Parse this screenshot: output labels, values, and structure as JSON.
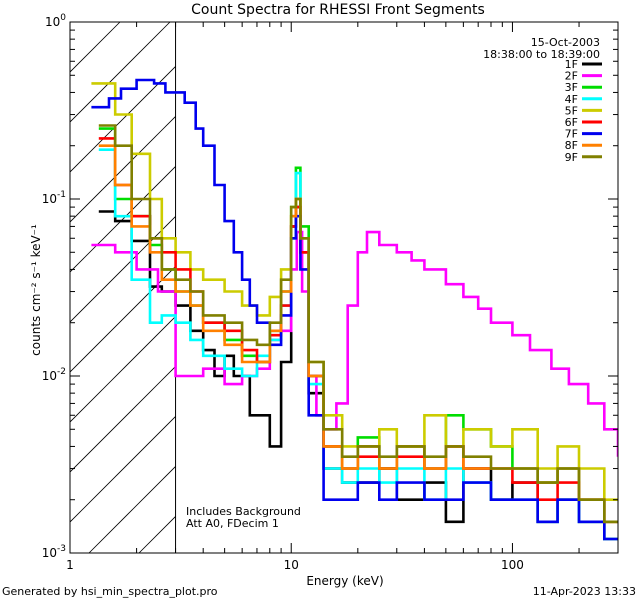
{
  "chart_data": {
    "type": "line",
    "title": "Count Spectra for RHESSI Front Segments",
    "xlabel": "Energy (keV)",
    "ylabel": "counts cm⁻² s⁻¹ keV⁻¹",
    "xscale": "log",
    "yscale": "log",
    "xlim": [
      1,
      300
    ],
    "ylim": [
      0.001,
      1
    ],
    "x_tick_labels": [
      {
        "value": 1,
        "label": "1"
      },
      {
        "value": 10,
        "label": "10"
      },
      {
        "value": 100,
        "label": "100"
      }
    ],
    "y_tick_labels": [
      {
        "value": 0.001,
        "base": "10",
        "exp": "-3"
      },
      {
        "value": 0.01,
        "base": "10",
        "exp": "-2"
      },
      {
        "value": 0.1,
        "base": "10",
        "exp": "-1"
      },
      {
        "value": 1,
        "base": "10",
        "exp": "0"
      }
    ],
    "shaded_region_keV": [
      1,
      3
    ],
    "date": "15-Oct-2003",
    "time_range": "18:38:00 to 18:39:00",
    "annotations": [
      "Includes Background",
      "Att A0, FDecim 1"
    ],
    "legend_placement": "top-right",
    "series": [
      {
        "name": "1F",
        "color": "#000000",
        "points": [
          [
            1.35,
            0.085
          ],
          [
            1.6,
            0.075
          ],
          [
            1.9,
            0.058
          ],
          [
            2.3,
            0.032
          ],
          [
            2.6,
            0.03
          ],
          [
            3.0,
            0.025
          ],
          [
            3.5,
            0.018
          ],
          [
            4.0,
            0.014
          ],
          [
            4.5,
            0.01
          ],
          [
            5.0,
            0.013
          ],
          [
            5.5,
            0.01
          ],
          [
            6.5,
            0.006
          ],
          [
            8.0,
            0.004
          ],
          [
            9.0,
            0.012
          ],
          [
            10.0,
            0.07
          ],
          [
            10.5,
            0.09
          ],
          [
            11.0,
            0.05
          ],
          [
            12.0,
            0.008
          ],
          [
            14.0,
            0.003
          ],
          [
            17.0,
            0.0025
          ],
          [
            20.0,
            0.0025
          ],
          [
            25.0,
            0.003
          ],
          [
            30.0,
            0.002
          ],
          [
            40.0,
            0.0025
          ],
          [
            50.0,
            0.0015
          ],
          [
            60.0,
            0.003
          ],
          [
            80.0,
            0.002
          ],
          [
            100.0,
            0.0025
          ],
          [
            130.0,
            0.0015
          ],
          [
            160.0,
            0.002
          ],
          [
            200.0,
            0.0015
          ],
          [
            260.0,
            0.0012
          ]
        ]
      },
      {
        "name": "2F",
        "color": "#ff00ff",
        "points": [
          [
            1.25,
            0.055
          ],
          [
            1.6,
            0.05
          ],
          [
            2.0,
            0.04
          ],
          [
            2.5,
            0.03
          ],
          [
            3.0,
            0.01
          ],
          [
            3.5,
            0.01
          ],
          [
            4.0,
            0.011
          ],
          [
            5.0,
            0.009
          ],
          [
            6.0,
            0.01
          ],
          [
            7.0,
            0.011
          ],
          [
            8.0,
            0.016
          ],
          [
            9.0,
            0.018
          ],
          [
            10.0,
            0.04
          ],
          [
            10.6,
            0.065
          ],
          [
            11.2,
            0.03
          ],
          [
            12.0,
            0.01
          ],
          [
            13.0,
            0.006
          ],
          [
            14.0,
            0.005
          ],
          [
            16.0,
            0.007
          ],
          [
            18.0,
            0.025
          ],
          [
            20.0,
            0.05
          ],
          [
            22.0,
            0.065
          ],
          [
            25.0,
            0.055
          ],
          [
            30.0,
            0.05
          ],
          [
            35.0,
            0.045
          ],
          [
            40.0,
            0.04
          ],
          [
            50.0,
            0.033
          ],
          [
            60.0,
            0.028
          ],
          [
            70.0,
            0.024
          ],
          [
            80.0,
            0.02
          ],
          [
            100.0,
            0.017
          ],
          [
            120.0,
            0.014
          ],
          [
            150.0,
            0.011
          ],
          [
            180.0,
            0.009
          ],
          [
            220.0,
            0.007
          ],
          [
            260.0,
            0.005
          ],
          [
            300.0,
            0.0035
          ]
        ]
      },
      {
        "name": "3F",
        "color": "#00dd00",
        "points": [
          [
            1.35,
            0.25
          ],
          [
            1.6,
            0.1
          ],
          [
            1.9,
            0.08
          ],
          [
            2.3,
            0.055
          ],
          [
            2.6,
            0.04
          ],
          [
            3.0,
            0.03
          ],
          [
            3.5,
            0.025
          ],
          [
            4.0,
            0.02
          ],
          [
            5.0,
            0.016
          ],
          [
            6.0,
            0.013
          ],
          [
            7.0,
            0.012
          ],
          [
            8.0,
            0.018
          ],
          [
            9.0,
            0.03
          ],
          [
            10.0,
            0.09
          ],
          [
            10.5,
            0.15
          ],
          [
            11.0,
            0.07
          ],
          [
            12.0,
            0.01
          ],
          [
            14.0,
            0.004
          ],
          [
            17.0,
            0.003
          ],
          [
            20.0,
            0.0045
          ],
          [
            25.0,
            0.003
          ],
          [
            30.0,
            0.004
          ],
          [
            40.0,
            0.003
          ],
          [
            50.0,
            0.006
          ],
          [
            60.0,
            0.005
          ],
          [
            80.0,
            0.004
          ],
          [
            100.0,
            0.003
          ],
          [
            130.0,
            0.0025
          ],
          [
            160.0,
            0.003
          ],
          [
            200.0,
            0.002
          ],
          [
            260.0,
            0.0015
          ]
        ]
      },
      {
        "name": "4F",
        "color": "#00ffff",
        "points": [
          [
            1.35,
            0.19
          ],
          [
            1.6,
            0.08
          ],
          [
            1.9,
            0.035
          ],
          [
            2.3,
            0.02
          ],
          [
            2.6,
            0.022
          ],
          [
            3.0,
            0.02
          ],
          [
            3.5,
            0.016
          ],
          [
            4.0,
            0.013
          ],
          [
            5.0,
            0.011
          ],
          [
            6.0,
            0.01
          ],
          [
            7.0,
            0.013
          ],
          [
            8.0,
            0.016
          ],
          [
            9.0,
            0.025
          ],
          [
            10.0,
            0.06
          ],
          [
            10.5,
            0.14
          ],
          [
            11.0,
            0.06
          ],
          [
            12.0,
            0.009
          ],
          [
            14.0,
            0.003
          ],
          [
            17.0,
            0.0025
          ],
          [
            20.0,
            0.003
          ],
          [
            25.0,
            0.0025
          ],
          [
            30.0,
            0.003
          ],
          [
            40.0,
            0.002
          ],
          [
            50.0,
            0.003
          ],
          [
            60.0,
            0.0025
          ],
          [
            80.0,
            0.002
          ],
          [
            100.0,
            0.002
          ],
          [
            130.0,
            0.0015
          ],
          [
            160.0,
            0.002
          ],
          [
            200.0,
            0.0015
          ],
          [
            260.0,
            0.0012
          ]
        ]
      },
      {
        "name": "5F",
        "color": "#cccc00",
        "points": [
          [
            1.25,
            0.45
          ],
          [
            1.6,
            0.3
          ],
          [
            1.9,
            0.18
          ],
          [
            2.3,
            0.1
          ],
          [
            2.6,
            0.06
          ],
          [
            3.0,
            0.05
          ],
          [
            3.5,
            0.04
          ],
          [
            4.0,
            0.035
          ],
          [
            5.0,
            0.03
          ],
          [
            6.0,
            0.025
          ],
          [
            7.0,
            0.022
          ],
          [
            8.0,
            0.028
          ],
          [
            9.0,
            0.04
          ],
          [
            10.0,
            0.08
          ],
          [
            10.5,
            0.1
          ],
          [
            11.0,
            0.05
          ],
          [
            12.0,
            0.012
          ],
          [
            14.0,
            0.006
          ],
          [
            17.0,
            0.004
          ],
          [
            20.0,
            0.004
          ],
          [
            25.0,
            0.005
          ],
          [
            30.0,
            0.004
          ],
          [
            40.0,
            0.006
          ],
          [
            50.0,
            0.004
          ],
          [
            60.0,
            0.005
          ],
          [
            80.0,
            0.004
          ],
          [
            100.0,
            0.005
          ],
          [
            130.0,
            0.003
          ],
          [
            160.0,
            0.004
          ],
          [
            200.0,
            0.003
          ],
          [
            260.0,
            0.002
          ]
        ]
      },
      {
        "name": "6F",
        "color": "#ff0000",
        "points": [
          [
            1.35,
            0.22
          ],
          [
            1.6,
            0.12
          ],
          [
            1.9,
            0.08
          ],
          [
            2.3,
            0.06
          ],
          [
            2.6,
            0.05
          ],
          [
            3.0,
            0.04
          ],
          [
            3.5,
            0.03
          ],
          [
            4.0,
            0.02
          ],
          [
            5.0,
            0.018
          ],
          [
            6.0,
            0.014
          ],
          [
            7.0,
            0.012
          ],
          [
            8.0,
            0.017
          ],
          [
            9.0,
            0.025
          ],
          [
            10.0,
            0.07
          ],
          [
            10.5,
            0.09
          ],
          [
            11.0,
            0.05
          ],
          [
            12.0,
            0.01
          ],
          [
            14.0,
            0.004
          ],
          [
            17.0,
            0.003
          ],
          [
            20.0,
            0.0035
          ],
          [
            25.0,
            0.003
          ],
          [
            30.0,
            0.0035
          ],
          [
            40.0,
            0.003
          ],
          [
            50.0,
            0.004
          ],
          [
            60.0,
            0.003
          ],
          [
            80.0,
            0.003
          ],
          [
            100.0,
            0.0025
          ],
          [
            130.0,
            0.002
          ],
          [
            160.0,
            0.0025
          ],
          [
            200.0,
            0.002
          ],
          [
            260.0,
            0.0015
          ]
        ]
      },
      {
        "name": "7F",
        "color": "#0000ee",
        "points": [
          [
            1.25,
            0.33
          ],
          [
            1.5,
            0.37
          ],
          [
            1.7,
            0.42
          ],
          [
            2.0,
            0.47
          ],
          [
            2.4,
            0.45
          ],
          [
            2.7,
            0.4
          ],
          [
            3.0,
            0.4
          ],
          [
            3.3,
            0.35
          ],
          [
            3.7,
            0.25
          ],
          [
            4.0,
            0.2
          ],
          [
            4.5,
            0.12
          ],
          [
            5.0,
            0.075
          ],
          [
            5.5,
            0.05
          ],
          [
            6.0,
            0.035
          ],
          [
            6.5,
            0.025
          ],
          [
            7.0,
            0.02
          ],
          [
            8.0,
            0.015
          ],
          [
            9.0,
            0.022
          ],
          [
            10.0,
            0.06
          ],
          [
            10.5,
            0.08
          ],
          [
            11.0,
            0.04
          ],
          [
            12.0,
            0.006
          ],
          [
            14.0,
            0.002
          ],
          [
            17.0,
            0.002
          ],
          [
            20.0,
            0.0025
          ],
          [
            25.0,
            0.002
          ],
          [
            30.0,
            0.0025
          ],
          [
            40.0,
            0.002
          ],
          [
            50.0,
            0.002
          ],
          [
            60.0,
            0.0025
          ],
          [
            80.0,
            0.002
          ],
          [
            100.0,
            0.002
          ],
          [
            130.0,
            0.0015
          ],
          [
            160.0,
            0.002
          ],
          [
            200.0,
            0.0015
          ],
          [
            260.0,
            0.0012
          ]
        ]
      },
      {
        "name": "8F",
        "color": "#ff8000",
        "points": [
          [
            1.35,
            0.2
          ],
          [
            1.6,
            0.12
          ],
          [
            1.9,
            0.07
          ],
          [
            2.3,
            0.05
          ],
          [
            2.6,
            0.035
          ],
          [
            3.0,
            0.03
          ],
          [
            3.5,
            0.025
          ],
          [
            4.0,
            0.018
          ],
          [
            5.0,
            0.015
          ],
          [
            6.0,
            0.012
          ],
          [
            7.0,
            0.012
          ],
          [
            8.0,
            0.018
          ],
          [
            9.0,
            0.03
          ],
          [
            10.0,
            0.08
          ],
          [
            10.5,
            0.1
          ],
          [
            11.0,
            0.06
          ],
          [
            12.0,
            0.01
          ],
          [
            14.0,
            0.004
          ],
          [
            17.0,
            0.003
          ],
          [
            20.0,
            0.004
          ],
          [
            25.0,
            0.003
          ],
          [
            30.0,
            0.004
          ],
          [
            40.0,
            0.003
          ],
          [
            50.0,
            0.004
          ],
          [
            60.0,
            0.003
          ],
          [
            80.0,
            0.003
          ],
          [
            100.0,
            0.003
          ],
          [
            130.0,
            0.0025
          ],
          [
            160.0,
            0.003
          ],
          [
            200.0,
            0.002
          ],
          [
            260.0,
            0.0015
          ]
        ]
      },
      {
        "name": "9F",
        "color": "#808000",
        "points": [
          [
            1.35,
            0.26
          ],
          [
            1.6,
            0.2
          ],
          [
            1.9,
            0.1
          ],
          [
            2.3,
            0.06
          ],
          [
            2.6,
            0.04
          ],
          [
            3.0,
            0.035
          ],
          [
            3.5,
            0.03
          ],
          [
            4.0,
            0.022
          ],
          [
            5.0,
            0.02
          ],
          [
            6.0,
            0.016
          ],
          [
            7.0,
            0.015
          ],
          [
            8.0,
            0.02
          ],
          [
            9.0,
            0.035
          ],
          [
            10.0,
            0.09
          ],
          [
            10.5,
            0.1
          ],
          [
            11.0,
            0.06
          ],
          [
            12.0,
            0.012
          ],
          [
            14.0,
            0.005
          ],
          [
            17.0,
            0.0035
          ],
          [
            20.0,
            0.004
          ],
          [
            25.0,
            0.0035
          ],
          [
            30.0,
            0.004
          ],
          [
            40.0,
            0.0035
          ],
          [
            50.0,
            0.004
          ],
          [
            60.0,
            0.0035
          ],
          [
            80.0,
            0.003
          ],
          [
            100.0,
            0.003
          ],
          [
            130.0,
            0.0025
          ],
          [
            160.0,
            0.003
          ],
          [
            200.0,
            0.002
          ],
          [
            260.0,
            0.0015
          ]
        ]
      }
    ]
  },
  "footer": {
    "generated_by": "Generated by hsi_min_spectra_plot.pro",
    "timestamp": "11-Apr-2023 13:33"
  }
}
